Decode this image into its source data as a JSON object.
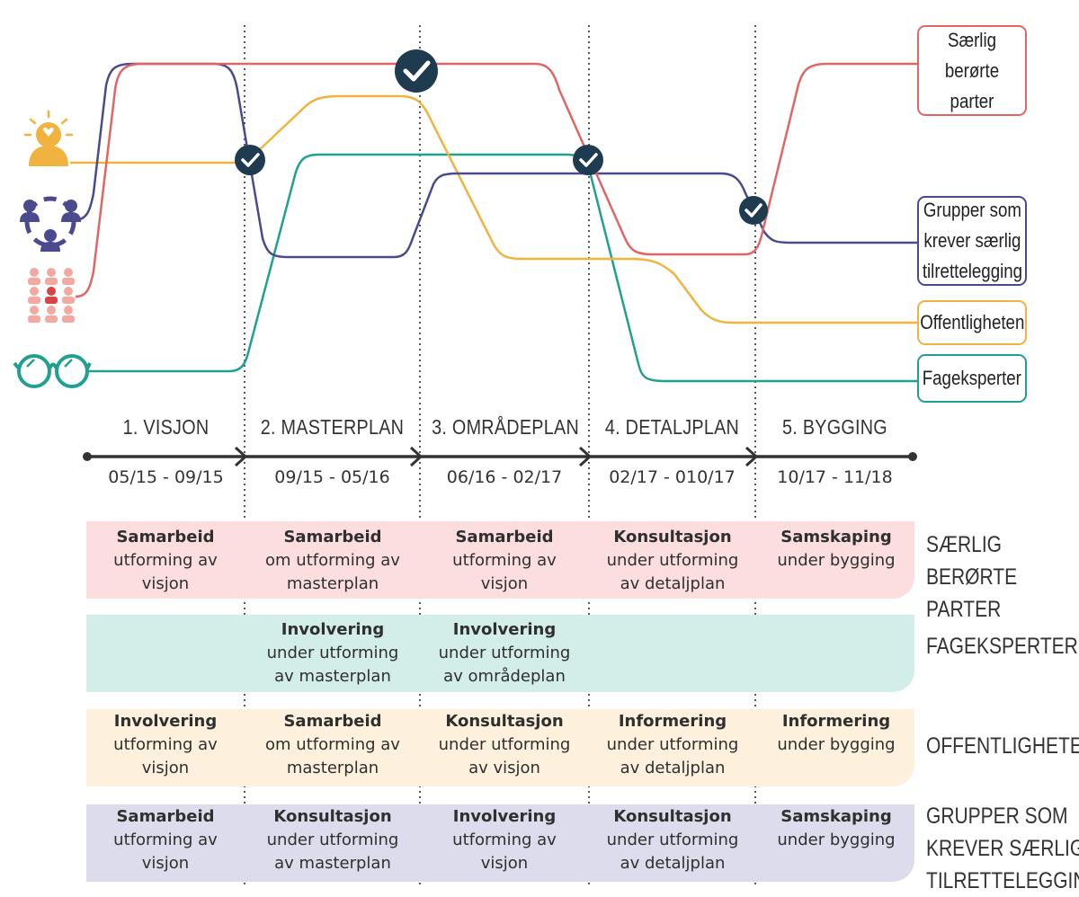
{
  "phases": [
    {
      "label": "1. VISJON",
      "date": "05/15 - 09/15"
    },
    {
      "label": "2. MASTERPLAN",
      "date": "09/15 - 05/16"
    },
    {
      "label": "3. OMRÅDEPLAN",
      "date": "06/16 - 02/17"
    },
    {
      "label": "4. DETALJPLAN",
      "date": "02/17 - 010/17"
    },
    {
      "label": "5. BYGGING",
      "date": "10/17 - 11/18"
    }
  ],
  "legend": {
    "saerlig": "Særlig\nberørte parter",
    "grupper": "Grupper som\nkrever særlig\ntilrettelegging",
    "offentlig": "Offentligheten",
    "fageksperter": "Fageksperter"
  },
  "rows": [
    {
      "label": "SÆRLIG BERØRTE\nPARTER",
      "color": "#fbdedd",
      "cells": [
        {
          "bold": "Samarbeid",
          "text": "utforming av\nvisjon"
        },
        {
          "bold": "Samarbeid",
          "text": "om utforming av\nmasterplan"
        },
        {
          "bold": "Samarbeid",
          "text": "utforming av\nvisjon"
        },
        {
          "bold": "Konsultasjon",
          "text": "under utforming\nav detaljplan"
        },
        {
          "bold": "Samskaping",
          "text": "under bygging"
        }
      ]
    },
    {
      "label": "FAGEKSPERTER",
      "color": "#d3ede9",
      "cells": [
        {
          "bold": "",
          "text": ""
        },
        {
          "bold": "Involvering",
          "text": "under utforming\nav masterplan"
        },
        {
          "bold": "Involvering",
          "text": "under utforming\nav områdeplan"
        },
        {
          "bold": "",
          "text": ""
        },
        {
          "bold": "",
          "text": ""
        }
      ]
    },
    {
      "label": "OFFENTLIGHETEN",
      "color": "#fdf0dc",
      "cells": [
        {
          "bold": "Involvering",
          "text": "utforming av\nvisjon"
        },
        {
          "bold": "Samarbeid",
          "text": "om utforming av\nmasterplan"
        },
        {
          "bold": "Konsultasjon",
          "text": "under utforming\nav visjon"
        },
        {
          "bold": "Informering",
          "text": "under utforming\nav detaljplan"
        },
        {
          "bold": "Informering",
          "text": "under bygging"
        }
      ]
    },
    {
      "label": "GRUPPER SOM\nKREVER SÆRLIG\nTILRETTELEGGING",
      "color": "#dddcec",
      "cells": [
        {
          "bold": "Samarbeid",
          "text": "utforming av\nvisjon"
        },
        {
          "bold": "Konsultasjon",
          "text": "under utforming\nav masterplan"
        },
        {
          "bold": "Involvering",
          "text": "utforming av\nvisjon"
        },
        {
          "bold": "Konsultasjon",
          "text": "under utforming\nav detaljplan"
        },
        {
          "bold": "Samskaping",
          "text": "under bygging"
        }
      ]
    }
  ],
  "colors": {
    "saerlig": "#e06666",
    "grupper": "#4b4a8f",
    "offentlig": "#f0b33f",
    "fageksperter": "#20a090",
    "check": "#1f3b50",
    "axis": "#333333"
  },
  "icons": {
    "offentlig": "person-heart-icon",
    "grupper": "group-circle-icon",
    "saerlig": "crowd-icon",
    "fageksperter": "glasses-icon",
    "milestone": "checkmark-icon"
  }
}
